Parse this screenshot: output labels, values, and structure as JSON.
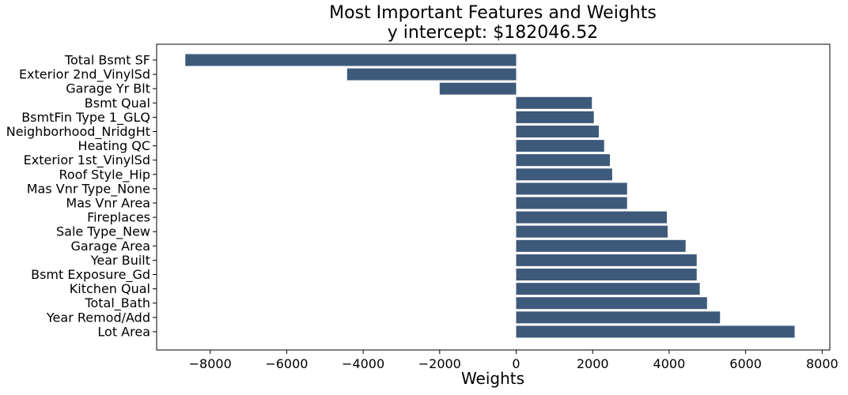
{
  "chart_data": {
    "type": "bar",
    "orientation": "horizontal",
    "title": "Most Important Features and Weights",
    "subtitle": "y intercept: $182046.52",
    "xlabel": "Weights",
    "ylabel": "",
    "xlim": [
      -9400,
      8200
    ],
    "xticks": [
      -8000,
      -6000,
      -4000,
      -2000,
      0,
      2000,
      4000,
      6000,
      8000
    ],
    "xtick_labels": [
      "−8000",
      "−6000",
      "−4000",
      "−2000",
      "0",
      "2000",
      "4000",
      "6000",
      "8000"
    ],
    "grid": false,
    "bar_color": "#3d5a7a",
    "categories": [
      "Total Bsmt SF",
      "Exterior 2nd_VinylSd",
      "Garage Yr Blt",
      "Bsmt Qual",
      "BsmtFin Type 1_GLQ",
      "Neighborhood_NridgHt",
      "Heating QC",
      "Exterior 1st_VinylSd",
      "Roof Style_Hip",
      "Mas Vnr Type_None",
      "Mas Vnr Area",
      "Fireplaces",
      "Sale Type_New",
      "Garage Area",
      "Year Built",
      "Bsmt Exposure_Gd",
      "Kitchen Qual",
      "Total_Bath",
      "Year Remod/Add",
      "Lot Area"
    ],
    "values": [
      -8650,
      -4420,
      -2000,
      1980,
      2030,
      2160,
      2300,
      2450,
      2510,
      2900,
      2900,
      3940,
      3960,
      4430,
      4720,
      4720,
      4800,
      4990,
      5330,
      7280
    ]
  }
}
